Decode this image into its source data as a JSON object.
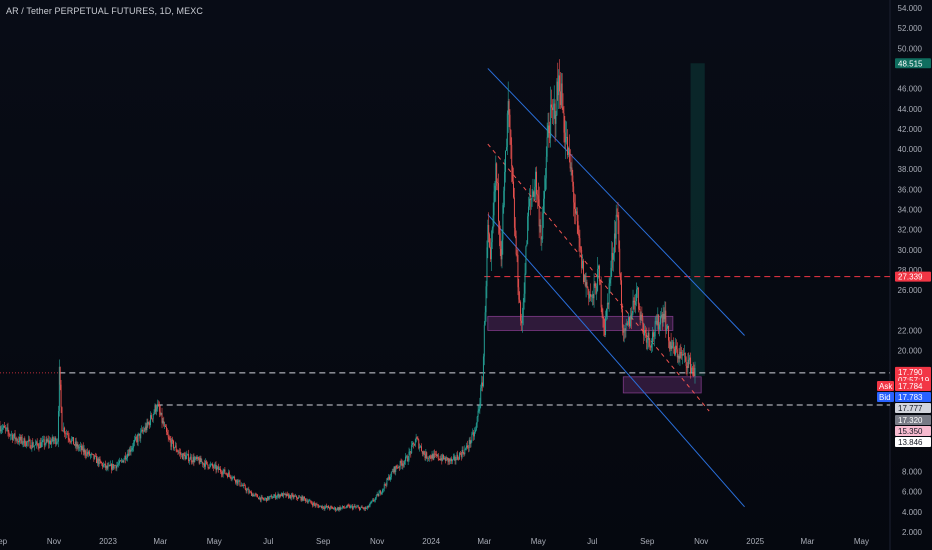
{
  "header": {
    "title": "AR / Tether PERPETUAL FUTURES, 1D, MEXC"
  },
  "colors": {
    "background": "#060a12",
    "up": "#26a69a",
    "down": "#ef5350",
    "channel": "#2a6fdb",
    "resistance": "#f23645",
    "support": "#d1d4dc",
    "zone": "#7e3a87",
    "target_zone": "#0f5a4f"
  },
  "chart_data": {
    "type": "candlestick",
    "symbol": "AR / Tether PERPETUAL FUTURES",
    "interval": "1D",
    "exchange": "MEXC",
    "ylim": [
      2.0,
      54.0
    ],
    "yticks": [
      "54.000",
      "52.000",
      "50.000",
      "46.000",
      "44.000",
      "42.000",
      "40.000",
      "38.000",
      "36.000",
      "34.000",
      "32.000",
      "30.000",
      "28.000",
      "26.000",
      "22.000",
      "20.000",
      "8.000",
      "6.000",
      "4.000",
      "2.000"
    ],
    "xlim": [
      "2022-09-01",
      "2025-05-31"
    ],
    "xticks": [
      {
        "label": "Sep",
        "date": "2022-09-01"
      },
      {
        "label": "Nov",
        "date": "2022-11-01"
      },
      {
        "label": "2023",
        "date": "2023-01-01"
      },
      {
        "label": "Mar",
        "date": "2023-03-01"
      },
      {
        "label": "May",
        "date": "2023-05-01"
      },
      {
        "label": "Jul",
        "date": "2023-07-01"
      },
      {
        "label": "Sep",
        "date": "2023-09-01"
      },
      {
        "label": "Nov",
        "date": "2023-11-01"
      },
      {
        "label": "2024",
        "date": "2024-01-01"
      },
      {
        "label": "Mar",
        "date": "2024-03-01"
      },
      {
        "label": "May",
        "date": "2024-05-01"
      },
      {
        "label": "Jul",
        "date": "2024-07-01"
      },
      {
        "label": "Sep",
        "date": "2024-09-01"
      },
      {
        "label": "Nov",
        "date": "2024-11-01"
      },
      {
        "label": "2025",
        "date": "2025-01-01"
      },
      {
        "label": "Mar",
        "date": "2025-03-01"
      },
      {
        "label": "May",
        "date": "2025-05-01"
      }
    ],
    "series": [
      {
        "type": "close-path",
        "values": [
          [
            "2022-09-01",
            12.5
          ],
          [
            "2022-09-20",
            11.2
          ],
          [
            "2022-10-10",
            10.6
          ],
          [
            "2022-10-25",
            10.9
          ],
          [
            "2022-11-05",
            11.2
          ],
          [
            "2022-11-07",
            17.8
          ],
          [
            "2022-11-10",
            12.5
          ],
          [
            "2022-11-25",
            10.6
          ],
          [
            "2022-12-15",
            9.4
          ],
          [
            "2022-12-31",
            8.3
          ],
          [
            "2023-01-15",
            8.8
          ],
          [
            "2023-02-01",
            11.0
          ],
          [
            "2023-02-15",
            12.6
          ],
          [
            "2023-02-25",
            14.6
          ],
          [
            "2023-03-10",
            11.2
          ],
          [
            "2023-03-25",
            9.6
          ],
          [
            "2023-04-15",
            9.0
          ],
          [
            "2023-05-01",
            8.4
          ],
          [
            "2023-05-20",
            7.6
          ],
          [
            "2023-06-10",
            5.9
          ],
          [
            "2023-06-25",
            5.2
          ],
          [
            "2023-07-15",
            5.7
          ],
          [
            "2023-08-10",
            5.3
          ],
          [
            "2023-08-25",
            4.6
          ],
          [
            "2023-09-15",
            4.3
          ],
          [
            "2023-10-01",
            4.5
          ],
          [
            "2023-10-20",
            4.3
          ],
          [
            "2023-11-05",
            6.0
          ],
          [
            "2023-11-20",
            8.2
          ],
          [
            "2023-12-05",
            9.3
          ],
          [
            "2023-12-15",
            11.2
          ],
          [
            "2023-12-25",
            9.6
          ],
          [
            "2024-01-10",
            9.4
          ],
          [
            "2024-01-25",
            9.0
          ],
          [
            "2024-02-10",
            10.3
          ],
          [
            "2024-02-20",
            12.0
          ],
          [
            "2024-02-28",
            17.0
          ],
          [
            "2024-03-05",
            32.0
          ],
          [
            "2024-03-08",
            28.0
          ],
          [
            "2024-03-14",
            38.0
          ],
          [
            "2024-03-20",
            30.0
          ],
          [
            "2024-03-28",
            44.0
          ],
          [
            "2024-04-05",
            31.0
          ],
          [
            "2024-04-12",
            22.0
          ],
          [
            "2024-04-20",
            34.0
          ],
          [
            "2024-04-28",
            37.0
          ],
          [
            "2024-05-05",
            31.0
          ],
          [
            "2024-05-12",
            42.0
          ],
          [
            "2024-05-20",
            44.0
          ],
          [
            "2024-05-25",
            47.0
          ],
          [
            "2024-06-01",
            41.0
          ],
          [
            "2024-06-08",
            37.0
          ],
          [
            "2024-06-15",
            31.0
          ],
          [
            "2024-06-22",
            27.0
          ],
          [
            "2024-07-01",
            25.0
          ],
          [
            "2024-07-08",
            27.5
          ],
          [
            "2024-07-15",
            22.0
          ],
          [
            "2024-07-22",
            28.0
          ],
          [
            "2024-07-29",
            34.0
          ],
          [
            "2024-08-05",
            21.0
          ],
          [
            "2024-08-12",
            23.0
          ],
          [
            "2024-08-20",
            26.0
          ],
          [
            "2024-08-28",
            22.0
          ],
          [
            "2024-09-05",
            21.0
          ],
          [
            "2024-09-12",
            22.5
          ],
          [
            "2024-09-20",
            24.0
          ],
          [
            "2024-09-25",
            21.0
          ],
          [
            "2024-10-01",
            20.0
          ],
          [
            "2024-10-10",
            19.5
          ],
          [
            "2024-10-18",
            18.8
          ],
          [
            "2024-10-25",
            17.79
          ]
        ]
      }
    ],
    "high_low_extremes": {
      "high": 50.0,
      "low": 3.6
    },
    "annotations": {
      "descending_channel_upper": [
        [
          "2024-03-05",
          48.0
        ],
        [
          "2024-12-20",
          21.5
        ]
      ],
      "descending_channel_lower": [
        [
          "2024-03-05",
          33.5
        ],
        [
          "2024-12-20",
          4.5
        ]
      ],
      "channel_midline": [
        [
          "2024-03-05",
          40.5
        ],
        [
          "2024-11-10",
          14.0
        ]
      ],
      "resistance_line": 27.339,
      "support_line_upper": 17.79,
      "support_line_lower": 14.6,
      "zone_1": {
        "from": "2024-03-05",
        "to": "2024-09-30",
        "low": 22.0,
        "high": 23.4
      },
      "zone_2": {
        "from": "2024-08-05",
        "to": "2024-11-01",
        "low": 15.8,
        "high": 17.4
      },
      "target_zone": {
        "from": "2024-10-20",
        "to": "2024-11-05",
        "low": 17.5,
        "high": 48.515
      }
    },
    "price_tags": [
      {
        "label": "48.515",
        "value": 48.515,
        "color": "#0f6e5f"
      },
      {
        "label": "27.339",
        "value": 27.339,
        "color": "#f23645"
      },
      {
        "label": "17.790",
        "value": 17.79,
        "color": "#f23645",
        "sub": "07:57:19"
      },
      {
        "label": "17.784",
        "value": 17.784,
        "color": "#f23645",
        "prefix": "Ask"
      },
      {
        "label": "17.783",
        "value": 17.783,
        "color": "#2962ff",
        "prefix": "Bid"
      },
      {
        "label": "17.777",
        "value": 17.777,
        "color": "#d1d4dc",
        "dark": true
      },
      {
        "label": "17.320",
        "value": 17.32,
        "color": "#787b86"
      },
      {
        "label": "15.350",
        "value": 15.35,
        "color": "#f8bbd0",
        "dark": true
      },
      {
        "label": "13.846",
        "value": 13.846,
        "color": "#ffffff",
        "dark": true
      }
    ]
  }
}
